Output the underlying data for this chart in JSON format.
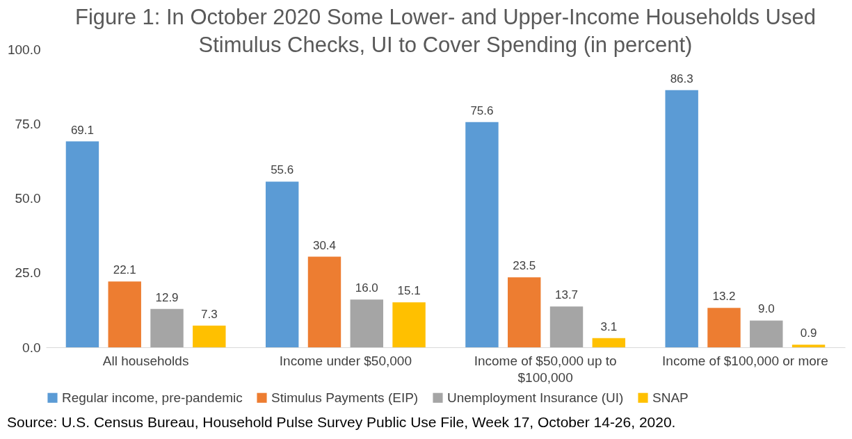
{
  "chart_data": {
    "type": "bar",
    "title": "Figure 1: In October 2020 Some Lower- and Upper-Income Households Used Stimulus Checks, UI to Cover Spending (in percent)",
    "categories": [
      "All households",
      "Income under $50,000",
      "Income of $50,000 up to $100,000",
      "Income of $100,000 or more"
    ],
    "series": [
      {
        "name": "Regular income, pre-pandemic",
        "color": "#5b9bd5",
        "values": [
          69.1,
          55.6,
          75.6,
          86.3
        ],
        "value_labels": [
          "69.1",
          "55.6",
          "75.6",
          "86.3"
        ]
      },
      {
        "name": "Stimulus Payments (EIP)",
        "color": "#ed7d31",
        "values": [
          22.1,
          30.4,
          23.5,
          13.2
        ],
        "value_labels": [
          "22.1",
          "30.4",
          "23.5",
          "13.2"
        ]
      },
      {
        "name": "Unemployment Insurance (UI)",
        "color": "#a5a5a5",
        "values": [
          12.9,
          16.0,
          13.7,
          9.0
        ],
        "value_labels": [
          "12.9",
          "16.0",
          "13.7",
          "9.0"
        ]
      },
      {
        "name": "SNAP",
        "color": "#ffc000",
        "values": [
          7.3,
          15.1,
          3.1,
          0.9
        ],
        "value_labels": [
          "7.3",
          "15.1",
          "3.1",
          "0.9"
        ]
      }
    ],
    "ylim": [
      0,
      100
    ],
    "yticks": [
      {
        "value": 0,
        "label": "0.0"
      },
      {
        "value": 25,
        "label": "25.0"
      },
      {
        "value": 50,
        "label": "50.0"
      },
      {
        "value": 75,
        "label": "75.0"
      },
      {
        "value": 100,
        "label": "100.0"
      }
    ],
    "grid": false,
    "legend": "bottom",
    "annotations": [
      "Source: U.S. Census Bureau, Household Pulse Survey Public Use File, Week 17, October 14-26, 2020."
    ]
  }
}
